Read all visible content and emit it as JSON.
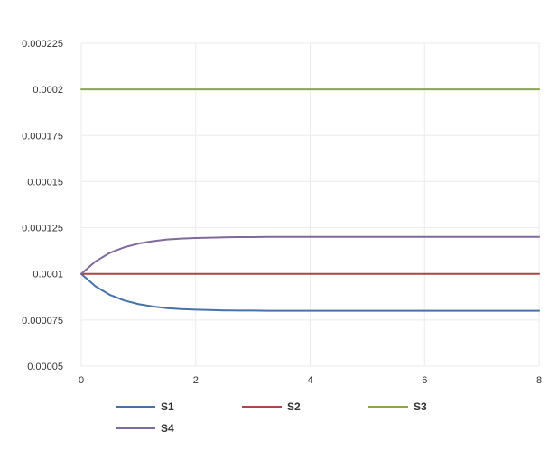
{
  "chart_data": {
    "type": "line",
    "title": "",
    "xlabel": "",
    "ylabel": "",
    "xlim": [
      0,
      8
    ],
    "ylim": [
      5e-05,
      0.000225
    ],
    "x_ticks": [
      "0",
      "2",
      "4",
      "6",
      "8"
    ],
    "y_ticks": [
      "0.00005",
      "0.000075",
      "0.0001",
      "0.000125",
      "0.00015",
      "0.000175",
      "0.0002",
      "0.000225"
    ],
    "grid": true,
    "legend_position": "bottom",
    "x": [
      0,
      0.25,
      0.5,
      0.75,
      1,
      1.25,
      1.5,
      1.75,
      2,
      2.25,
      2.5,
      2.75,
      3,
      3.25,
      3.5,
      3.75,
      4,
      4.25,
      4.5,
      4.75,
      5,
      5.25,
      5.5,
      5.75,
      6,
      6.25,
      6.5,
      6.75,
      7,
      7.25,
      7.5,
      7.75,
      8
    ],
    "series": [
      {
        "name": "S1",
        "color": "#4572a7",
        "values": [
          0.0001,
          9.32e-05,
          8.86e-05,
          8.56e-05,
          8.36e-05,
          8.23e-05,
          8.14e-05,
          8.09e-05,
          8.06e-05,
          8.04e-05,
          8.02e-05,
          8.01e-05,
          8.01e-05,
          8e-05,
          8e-05,
          8e-05,
          8e-05,
          8e-05,
          8e-05,
          8e-05,
          8e-05,
          8e-05,
          8e-05,
          8e-05,
          8e-05,
          8e-05,
          8e-05,
          8e-05,
          8e-05,
          8e-05,
          8e-05,
          8e-05,
          8e-05
        ]
      },
      {
        "name": "S2",
        "color": "#aa4643",
        "values": [
          0.0001,
          0.0001,
          0.0001,
          0.0001,
          0.0001,
          0.0001,
          0.0001,
          0.0001,
          0.0001,
          0.0001,
          0.0001,
          0.0001,
          0.0001,
          0.0001,
          0.0001,
          0.0001,
          0.0001,
          0.0001,
          0.0001,
          0.0001,
          0.0001,
          0.0001,
          0.0001,
          0.0001,
          0.0001,
          0.0001,
          0.0001,
          0.0001,
          0.0001,
          0.0001,
          0.0001,
          0.0001,
          0.0001
        ]
      },
      {
        "name": "S3",
        "color": "#89a54e",
        "values": [
          0.0002,
          0.0002,
          0.0002,
          0.0002,
          0.0002,
          0.0002,
          0.0002,
          0.0002,
          0.0002,
          0.0002,
          0.0002,
          0.0002,
          0.0002,
          0.0002,
          0.0002,
          0.0002,
          0.0002,
          0.0002,
          0.0002,
          0.0002,
          0.0002,
          0.0002,
          0.0002,
          0.0002,
          0.0002,
          0.0002,
          0.0002,
          0.0002,
          0.0002,
          0.0002,
          0.0002,
          0.0002,
          0.0002
        ]
      },
      {
        "name": "S4",
        "color": "#80699b",
        "values": [
          0.0001,
          0.0001068,
          0.0001114,
          0.0001144,
          0.0001164,
          0.0001177,
          0.0001186,
          0.0001191,
          0.0001194,
          0.0001196,
          0.0001198,
          0.0001199,
          0.0001199,
          0.00012,
          0.00012,
          0.00012,
          0.00012,
          0.00012,
          0.00012,
          0.00012,
          0.00012,
          0.00012,
          0.00012,
          0.00012,
          0.00012,
          0.00012,
          0.00012,
          0.00012,
          0.00012,
          0.00012,
          0.00012,
          0.00012,
          0.00012
        ]
      }
    ]
  }
}
